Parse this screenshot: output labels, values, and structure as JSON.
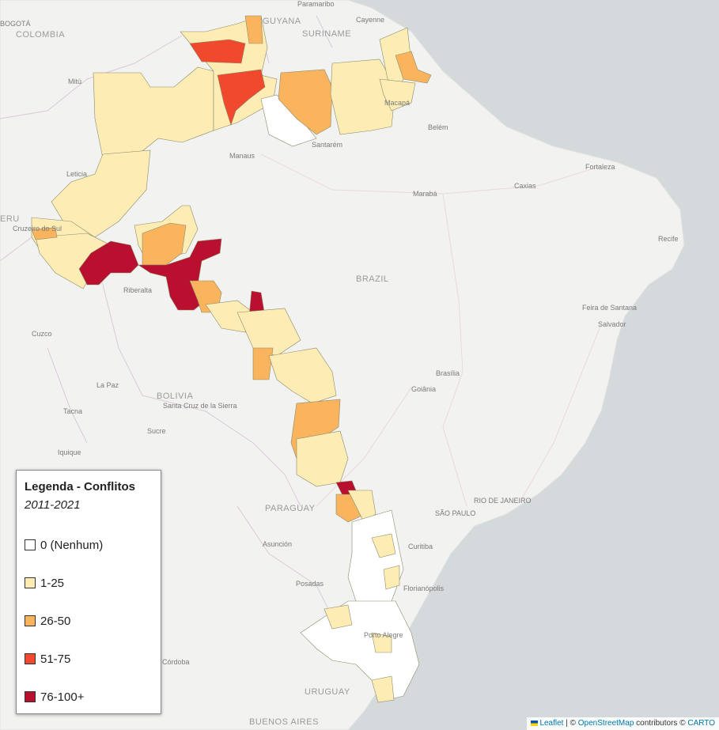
{
  "legend": {
    "title": "Legenda - Conflitos",
    "subtitle": "2011-2021",
    "items": [
      {
        "label": "0 (Nenhum)",
        "color": "#ffffff"
      },
      {
        "label": "1-25",
        "color": "#fdedb5"
      },
      {
        "label": "26-50",
        "color": "#f9b45d"
      },
      {
        "label": "51-75",
        "color": "#f0492d"
      },
      {
        "label": "76-100+",
        "color": "#b8102e"
      }
    ]
  },
  "attribution": {
    "leaflet": "Leaflet",
    "separator": "| ©",
    "osm": "OpenStreetMap",
    "contributors": "contributors ©",
    "carto": "CARTO"
  },
  "map_labels": {
    "countries": [
      "COLOMBIA",
      "GUYANA",
      "SURINAME",
      "BRAZIL",
      "BOLIVIA",
      "PARAGUAY",
      "URUGUAY",
      "ERU"
    ],
    "cities": [
      "Paramaribo",
      "Cayenne",
      "Mitú",
      "Macapá",
      "Belém",
      "Manaus",
      "Santarém",
      "Leticia",
      "Marabá",
      "Fortaleza",
      "Caxias",
      "Recife",
      "Cruzeiro do Sul",
      "Riberalta",
      "Feira de Santana",
      "Salvador",
      "Cuzco",
      "La Paz",
      "Brasília",
      "Goiânia",
      "Santa Cruz de la Sierra",
      "Tacna",
      "Sucre",
      "Iquique",
      "RIO DE JANEIRO",
      "SÃO PAULO",
      "Curitiba",
      "Asunción",
      "Posadas",
      "Florianópolis",
      "Porto Alegre",
      "Córdoba",
      "BUENOS AIRES",
      "BOGOTÁ"
    ]
  }
}
